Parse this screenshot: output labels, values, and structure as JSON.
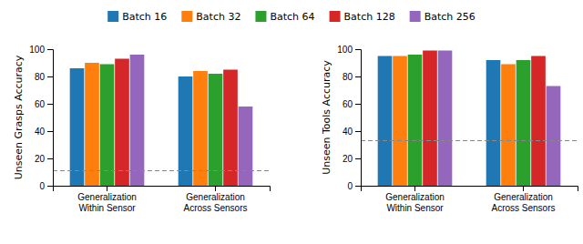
{
  "chart_data": [
    {
      "type": "bar",
      "ylabel": "Unseen Grasps Accuracy",
      "categories": [
        "Generalization\nWithin Sensor",
        "Generalization\nAcross Sensors"
      ],
      "series": [
        {
          "name": "Batch 16",
          "values": [
            86,
            80
          ]
        },
        {
          "name": "Batch 32",
          "values": [
            90,
            84
          ]
        },
        {
          "name": "Batch 64",
          "values": [
            89,
            82
          ]
        },
        {
          "name": "Batch 128",
          "values": [
            93,
            85
          ]
        },
        {
          "name": "Batch 256",
          "values": [
            96,
            58
          ]
        }
      ],
      "baseline": 11,
      "ylim": [
        0,
        100
      ],
      "yticks": [
        0,
        20,
        40,
        60,
        80,
        100
      ],
      "legend": "top"
    },
    {
      "type": "bar",
      "ylabel": "Unseen Tools Accuracy",
      "categories": [
        "Generalization\nWithin Sensor",
        "Generalization\nAcross Sensors"
      ],
      "series": [
        {
          "name": "Batch 16",
          "values": [
            95,
            92
          ]
        },
        {
          "name": "Batch 32",
          "values": [
            95,
            89
          ]
        },
        {
          "name": "Batch 64",
          "values": [
            96,
            92
          ]
        },
        {
          "name": "Batch 128",
          "values": [
            99,
            95
          ]
        },
        {
          "name": "Batch 256",
          "values": [
            99,
            73
          ]
        }
      ],
      "baseline": 33,
      "ylim": [
        0,
        100
      ],
      "yticks": [
        0,
        20,
        40,
        60,
        80,
        100
      ]
    }
  ]
}
